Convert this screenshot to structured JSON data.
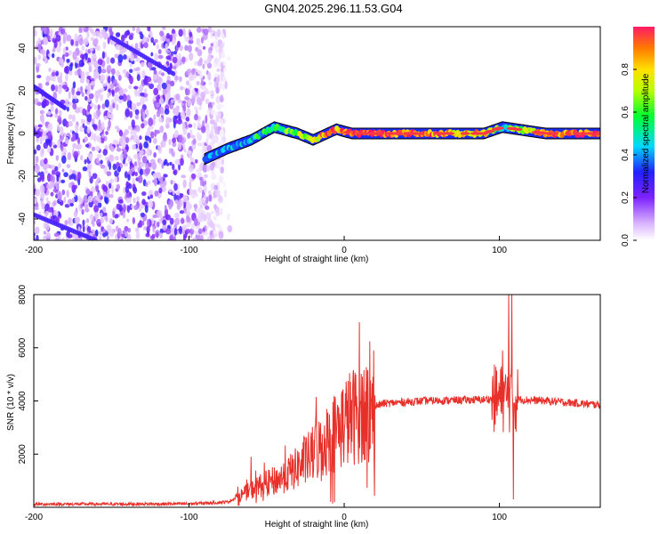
{
  "title": "GN04.2025.296.11.53.G04",
  "chart_data": [
    {
      "type": "heatmap",
      "xlabel": "Height of straight line (km)",
      "ylabel": "Frequency (Hz)",
      "xlim": [
        -200,
        165
      ],
      "ylim": [
        -50,
        50
      ],
      "xticks": [
        -200,
        -100,
        0,
        100
      ],
      "xtick_labels": [
        "-200",
        "-100",
        "0",
        "100"
      ],
      "yticks": [
        -40,
        -20,
        0,
        20,
        40
      ],
      "ytick_labels": [
        "-40",
        "-20",
        "0",
        "20",
        "40"
      ],
      "colorbar": {
        "label": "Normalized spectral amplitude",
        "range": [
          0,
          1
        ],
        "ticks": [
          0.0,
          0.2,
          0.4,
          0.6,
          0.8
        ],
        "tick_labels": [
          "0.0",
          "0.2",
          "0.4",
          "0.6",
          "0.8"
        ]
      },
      "noise_region_x": [
        -200,
        -77
      ],
      "ridge": {
        "description_points": [
          {
            "x": -90,
            "y": -12,
            "amp": 0.3
          },
          {
            "x": -75,
            "y": -7,
            "amp": 0.35
          },
          {
            "x": -60,
            "y": -3,
            "amp": 0.5
          },
          {
            "x": -45,
            "y": 3,
            "amp": 0.55
          },
          {
            "x": -30,
            "y": 0,
            "amp": 0.7
          },
          {
            "x": -20,
            "y": -3,
            "amp": 0.8
          },
          {
            "x": -5,
            "y": 2,
            "amp": 0.9
          },
          {
            "x": 5,
            "y": 0,
            "amp": 1.0
          },
          {
            "x": 50,
            "y": 0,
            "amp": 0.9
          },
          {
            "x": 90,
            "y": 0,
            "amp": 0.8
          },
          {
            "x": 102,
            "y": 3,
            "amp": 0.5
          },
          {
            "x": 130,
            "y": 0,
            "amp": 0.9
          },
          {
            "x": 165,
            "y": 0,
            "amp": 0.95
          }
        ]
      }
    },
    {
      "type": "line",
      "xlabel": "Height of straight line (km)",
      "ylabel": "SNR (10 * v/v)",
      "xlim": [
        -200,
        165
      ],
      "ylim": [
        0,
        8000
      ],
      "xticks": [
        -200,
        -100,
        0,
        100
      ],
      "xtick_labels": [
        "-200",
        "-100",
        "0",
        "100"
      ],
      "yticks": [
        2000,
        4000,
        6000,
        8000
      ],
      "ytick_labels": [
        "2000",
        "4000",
        "6000",
        "8000"
      ],
      "series": [
        {
          "name": "SNR",
          "color": "#e8302a",
          "envelope_points": [
            {
              "x": -200,
              "y": 120
            },
            {
              "x": -150,
              "y": 120
            },
            {
              "x": -100,
              "y": 130
            },
            {
              "x": -75,
              "y": 200
            },
            {
              "x": -65,
              "y": 500
            },
            {
              "x": -55,
              "y": 800
            },
            {
              "x": -40,
              "y": 1100
            },
            {
              "x": -30,
              "y": 1500
            },
            {
              "x": -20,
              "y": 2000
            },
            {
              "x": -10,
              "y": 2600
            },
            {
              "x": 0,
              "y": 3200
            },
            {
              "x": 10,
              "y": 3600
            },
            {
              "x": 25,
              "y": 3900
            },
            {
              "x": 50,
              "y": 4000
            },
            {
              "x": 90,
              "y": 4050
            },
            {
              "x": 100,
              "y": 4100
            },
            {
              "x": 130,
              "y": 4000
            },
            {
              "x": 165,
              "y": 3850
            }
          ],
          "spikes": [
            {
              "x": -60,
              "y": 1900
            },
            {
              "x": -18,
              "y": 4150
            },
            {
              "x": 102,
              "y": 5900
            },
            {
              "x": 106,
              "y": 8000
            },
            {
              "x": 108,
              "y": 8000
            },
            {
              "x": 109,
              "y": 300
            }
          ]
        }
      ]
    }
  ]
}
